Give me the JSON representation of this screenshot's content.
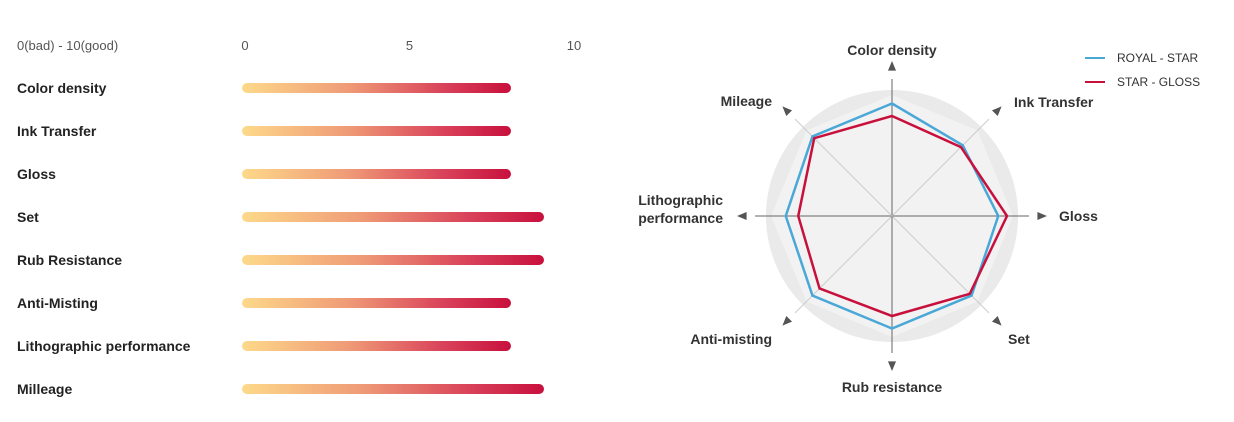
{
  "chart_data": [
    {
      "type": "bar",
      "scale_caption": "0(bad) - 10(good)",
      "xlim": [
        0,
        10
      ],
      "ticks": [
        "0",
        "5",
        "10"
      ],
      "categories": [
        "Color density",
        "Ink Transfer",
        "Gloss",
        "Set",
        "Rub Resistance",
        "Anti-Misting",
        "Lithographic performance",
        "Milleage"
      ],
      "values": [
        8,
        8,
        8,
        9,
        9,
        8,
        8,
        9
      ],
      "colors": {
        "gradient_start": "#fdd98a",
        "gradient_end": "#c8103d"
      }
    },
    {
      "type": "radar",
      "axes": [
        "Color density",
        "Ink Transfer",
        "Gloss",
        "Set",
        "Rub resistance",
        "Anti-misting",
        "Lithographic\nperformance",
        "Mileage"
      ],
      "rlim": [
        0,
        10
      ],
      "grid": true,
      "legend_position": "top-right",
      "series": [
        {
          "name": "ROYAL - STAR",
          "color": "#4aa8d8",
          "values": [
            9.0,
            8.0,
            8.5,
            9.0,
            9.0,
            9.0,
            8.5,
            9.0
          ]
        },
        {
          "name": "STAR - GLOSS",
          "color": "#c8103d",
          "values": [
            8.0,
            7.8,
            9.2,
            8.8,
            8.0,
            8.2,
            7.5,
            8.8
          ]
        }
      ]
    }
  ]
}
